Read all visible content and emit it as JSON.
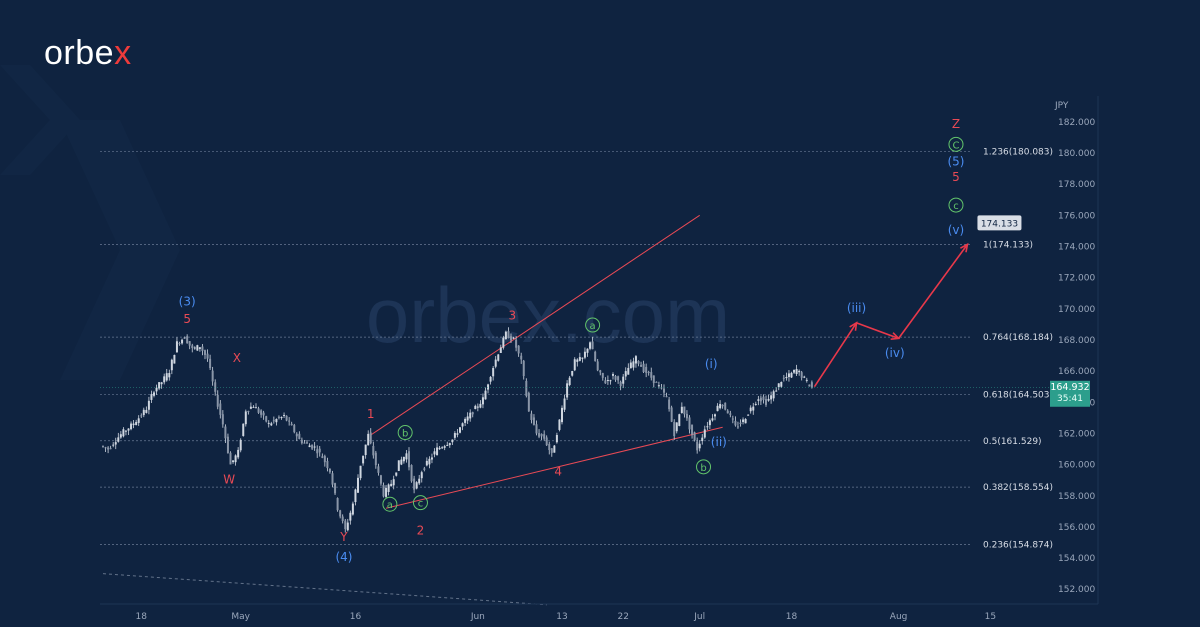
{
  "brand": {
    "logo_text": "orbe",
    "logo_accent": "x",
    "watermark": "orbex.com"
  },
  "colors": {
    "background": "#0f2340",
    "candle": "#cfd6e0",
    "red_label": "#e84a55",
    "blue_label": "#4a8cf0",
    "green_label": "#62c46b",
    "trendline": "#e84a55",
    "projection": "#e8384a",
    "price_box": "#2c9e8c"
  },
  "chart_data": {
    "type": "candlestick",
    "symbol_unit": "JPY",
    "ylim": [
      150.5,
      183.0
    ],
    "y_ticks": [
      "152.000",
      "154.000",
      "156.000",
      "158.000",
      "160.000",
      "162.000",
      "164.000",
      "166.000",
      "168.000",
      "170.000",
      "172.000",
      "174.000",
      "176.000",
      "178.000",
      "180.000",
      "182.000"
    ],
    "x_tick_labels": [
      {
        "label": "18",
        "day": 5
      },
      {
        "label": "May",
        "day": 18
      },
      {
        "label": "16",
        "day": 33
      },
      {
        "label": "Jun",
        "day": 49
      },
      {
        "label": "13",
        "day": 60
      },
      {
        "label": "22",
        "day": 68
      },
      {
        "label": "Jul",
        "day": 78
      },
      {
        "label": "18",
        "day": 90
      },
      {
        "label": "Aug",
        "day": 104
      },
      {
        "label": "15",
        "day": 116
      }
    ],
    "fib_levels": [
      {
        "label": "1.236(180.083)",
        "value": 180.083
      },
      {
        "label": "1(174.133)",
        "value": 174.133
      },
      {
        "label": "0.764(168.184)",
        "value": 168.184
      },
      {
        "label": "0.618(164.503)",
        "value": 164.503
      },
      {
        "label": "0.5(161.529)",
        "value": 161.529
      },
      {
        "label": "0.382(158.554)",
        "value": 158.554
      },
      {
        "label": "0.236(154.874)",
        "value": 154.874
      }
    ],
    "price_path": [
      [
        0,
        161.2
      ],
      [
        1,
        161.0
      ],
      [
        2,
        161.6
      ],
      [
        3,
        162.1
      ],
      [
        4,
        162.5
      ],
      [
        5,
        163.0
      ],
      [
        6,
        163.6
      ],
      [
        7,
        164.8
      ],
      [
        8,
        165.3
      ],
      [
        9,
        166.0
      ],
      [
        10,
        167.8
      ],
      [
        11,
        168.2
      ],
      [
        12,
        167.4
      ],
      [
        13,
        167.6
      ],
      [
        14,
        166.8
      ],
      [
        15,
        164.5
      ],
      [
        16,
        162.6
      ],
      [
        17,
        160.0
      ],
      [
        18,
        160.8
      ],
      [
        19,
        163.5
      ],
      [
        20,
        163.8
      ],
      [
        21,
        163.2
      ],
      [
        22,
        162.6
      ],
      [
        23,
        162.9
      ],
      [
        24,
        163.1
      ],
      [
        25,
        162.4
      ],
      [
        26,
        161.6
      ],
      [
        27,
        161.3
      ],
      [
        28,
        161.1
      ],
      [
        29,
        160.5
      ],
      [
        30,
        159.6
      ],
      [
        31,
        157.2
      ],
      [
        32,
        155.8
      ],
      [
        33,
        157.5
      ],
      [
        34,
        160.0
      ],
      [
        35,
        161.9
      ],
      [
        36,
        160.0
      ],
      [
        37,
        158.1
      ],
      [
        38,
        158.8
      ],
      [
        39,
        160.1
      ],
      [
        40,
        160.7
      ],
      [
        41,
        158.3
      ],
      [
        42,
        159.6
      ],
      [
        43,
        160.3
      ],
      [
        44,
        161.0
      ],
      [
        45,
        161.3
      ],
      [
        46,
        161.6
      ],
      [
        47,
        162.4
      ],
      [
        48,
        163.0
      ],
      [
        49,
        163.6
      ],
      [
        50,
        164.2
      ],
      [
        51,
        165.8
      ],
      [
        52,
        167.2
      ],
      [
        53,
        168.4
      ],
      [
        54,
        168.0
      ],
      [
        55,
        166.6
      ],
      [
        56,
        163.4
      ],
      [
        57,
        162.0
      ],
      [
        58,
        161.7
      ],
      [
        59,
        160.6
      ],
      [
        60,
        162.8
      ],
      [
        61,
        165.2
      ],
      [
        62,
        166.6
      ],
      [
        63,
        166.8
      ],
      [
        64,
        167.9
      ],
      [
        65,
        166.0
      ],
      [
        66,
        165.3
      ],
      [
        67,
        165.7
      ],
      [
        68,
        165.2
      ],
      [
        69,
        166.2
      ],
      [
        70,
        166.8
      ],
      [
        71,
        166.1
      ],
      [
        72,
        165.6
      ],
      [
        73,
        165.0
      ],
      [
        74,
        164.3
      ],
      [
        75,
        162.0
      ],
      [
        76,
        163.8
      ],
      [
        77,
        162.4
      ],
      [
        78,
        161.0
      ],
      [
        79,
        162.3
      ],
      [
        80,
        163.1
      ],
      [
        81,
        164.0
      ],
      [
        82,
        163.4
      ],
      [
        83,
        162.4
      ],
      [
        84,
        162.8
      ],
      [
        85,
        163.6
      ],
      [
        86,
        164.3
      ],
      [
        87,
        164.0
      ],
      [
        88,
        164.6
      ],
      [
        89,
        165.4
      ],
      [
        90,
        165.7
      ],
      [
        91,
        166.1
      ],
      [
        92,
        165.5
      ],
      [
        93,
        164.932
      ]
    ],
    "wave_labels": [
      {
        "text": "(3)",
        "color": "blue",
        "day": 11,
        "price": 170.2
      },
      {
        "text": "5",
        "color": "red",
        "day": 11,
        "price": 169.1
      },
      {
        "text": "X",
        "color": "red",
        "day": 17.5,
        "price": 166.6
      },
      {
        "text": "W",
        "color": "red",
        "day": 16.5,
        "price": 158.8
      },
      {
        "text": "Y",
        "color": "red",
        "day": 31.5,
        "price": 155.1
      },
      {
        "text": "(4)",
        "color": "blue",
        "day": 31.5,
        "price": 153.8
      },
      {
        "text": "1",
        "color": "red",
        "day": 35,
        "price": 163.0
      },
      {
        "text": "a",
        "color": "green",
        "day": 37.5,
        "price": 157.2,
        "circled": true
      },
      {
        "text": "b",
        "color": "green",
        "day": 39.5,
        "price": 161.8,
        "circled": true
      },
      {
        "text": "c",
        "color": "green",
        "day": 41.5,
        "price": 157.3,
        "circled": true
      },
      {
        "text": "2",
        "color": "red",
        "day": 41.5,
        "price": 155.5
      },
      {
        "text": "3",
        "color": "red",
        "day": 53.5,
        "price": 169.3
      },
      {
        "text": "a",
        "color": "green",
        "day": 64,
        "price": 168.7,
        "circled": true
      },
      {
        "text": "4",
        "color": "red",
        "day": 59.5,
        "price": 159.3
      },
      {
        "text": "b",
        "color": "green",
        "day": 78.5,
        "price": 159.6,
        "circled": true
      },
      {
        "text": "(i)",
        "color": "blue",
        "day": 79.5,
        "price": 166.2
      },
      {
        "text": "(ii)",
        "color": "blue",
        "day": 80.5,
        "price": 161.2
      },
      {
        "text": "(iii)",
        "color": "blue",
        "day": 98.5,
        "price": 169.8
      },
      {
        "text": "(iv)",
        "color": "blue",
        "day": 103.5,
        "price": 166.9
      },
      {
        "text": "(v)",
        "color": "blue",
        "day": 111.5,
        "price": 174.8
      },
      {
        "text": "c",
        "color": "green",
        "day": 111.5,
        "price": 176.4,
        "circled": true
      },
      {
        "text": "5",
        "color": "red",
        "day": 111.5,
        "price": 178.2
      },
      {
        "text": "(5)",
        "color": "blue",
        "day": 111.5,
        "price": 179.2
      },
      {
        "text": "C",
        "color": "green",
        "day": 111.5,
        "price": 180.3,
        "circled": true
      },
      {
        "text": "Z",
        "color": "red",
        "day": 111.5,
        "price": 181.6
      }
    ],
    "trendlines": [
      {
        "name": "upper-channel",
        "from": [
          35,
          161.9
        ],
        "to": [
          78,
          176.0
        ]
      },
      {
        "name": "lower-channel",
        "from": [
          37,
          157.2
        ],
        "to": [
          81,
          162.4
        ]
      },
      {
        "name": "dotted-support",
        "from": [
          0,
          153.0
        ],
        "to": [
          58,
          151.0
        ]
      }
    ],
    "projection_path": [
      [
        93,
        165.0
      ],
      [
        98.5,
        169.1
      ],
      [
        104,
        168.1
      ],
      [
        113,
        174.133
      ]
    ],
    "target_label": "174.133",
    "current_price": {
      "value": "164.932",
      "countdown": "35:41"
    }
  }
}
